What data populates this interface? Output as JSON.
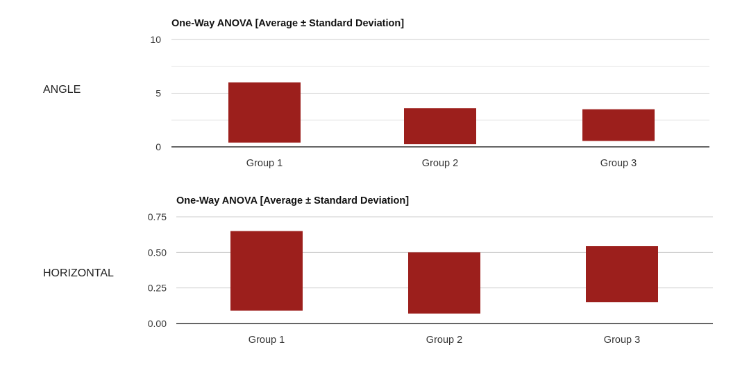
{
  "rows": [
    {
      "label": "ANGLE"
    },
    {
      "label": "HORIZONTAL"
    }
  ],
  "chart_data": [
    {
      "type": "bar",
      "title": "One-Way ANOVA [Average ± Standard Deviation]",
      "categories": [
        "Group 1",
        "Group 2",
        "Group 3"
      ],
      "series": [
        {
          "low": [
            0.4,
            0.25,
            0.55
          ],
          "high": [
            6.0,
            3.6,
            3.5
          ]
        }
      ],
      "ylim": [
        0,
        10
      ],
      "ticks": [
        "10",
        "5",
        "0"
      ],
      "tick_values": [
        10,
        5,
        0
      ],
      "minor_ticks": [
        2.5,
        7.5
      ],
      "color": "#9c1f1c",
      "grid": true
    },
    {
      "type": "bar",
      "title": "One-Way ANOVA [Average ± Standard Deviation]",
      "categories": [
        "Group 1",
        "Group 2",
        "Group 3"
      ],
      "series": [
        {
          "low": [
            0.09,
            0.07,
            0.15
          ],
          "high": [
            0.65,
            0.5,
            0.545
          ]
        }
      ],
      "ylim": [
        0,
        0.75
      ],
      "ticks": [
        "0.75",
        "0.50",
        "0.25",
        "0.00"
      ],
      "tick_values": [
        0.75,
        0.5,
        0.25,
        0
      ],
      "minor_ticks": [],
      "color": "#9c1f1c",
      "grid": true
    }
  ]
}
